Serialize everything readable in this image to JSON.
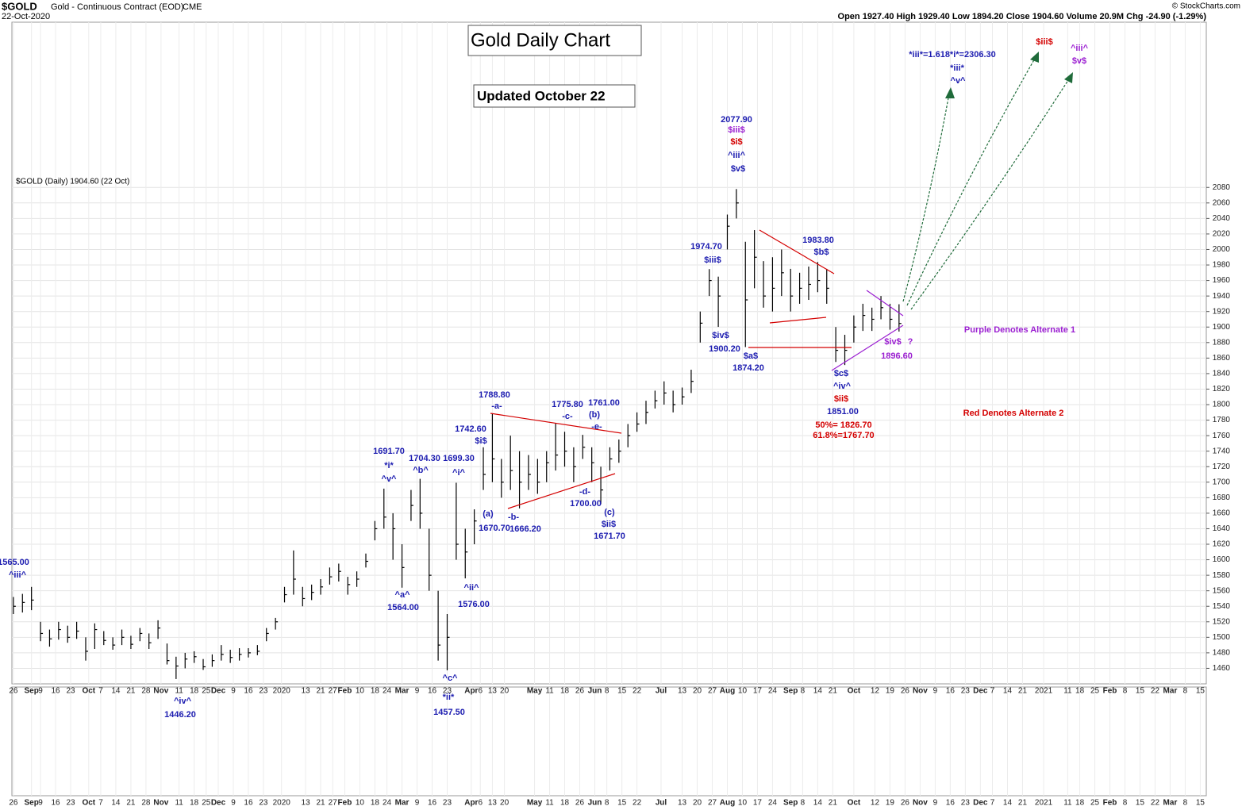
{
  "chart_data": {
    "type": "ohlc",
    "title": "Gold Daily Chart",
    "subtitle": "Updated October 22",
    "header": {
      "symbol": "$GOLD",
      "name": "Gold - Continuous Contract (EOD)",
      "exchange": "CME",
      "date": "22-Oct-2020",
      "quote": "Open 1927.40  High 1929.40  Low 1894.20  Close 1904.60  Volume 20.9M  Chg -24.90 (-1.29%)",
      "credit": "© StockCharts.com",
      "legend": "$GOLD (Daily) 1904.60 (22 Oct)"
    },
    "color": "#000000",
    "grid": true,
    "x": [
      0,
      3,
      6,
      9,
      12,
      15,
      18,
      21,
      24,
      27,
      30,
      33,
      36,
      39,
      42,
      45,
      48,
      51,
      54,
      57,
      60,
      63,
      66,
      69,
      72,
      75,
      78,
      81,
      84,
      87,
      90,
      93,
      96,
      99,
      102,
      105,
      108,
      111,
      114,
      117,
      120,
      123,
      126,
      129,
      132,
      135,
      138,
      141,
      144,
      147,
      150,
      153,
      156,
      159,
      162,
      165,
      168,
      171,
      174,
      177,
      180,
      183,
      186,
      189,
      192,
      195,
      198,
      201,
      204,
      207,
      210,
      213,
      216,
      219,
      222,
      225,
      228,
      231,
      234,
      237,
      240,
      243,
      246,
      249,
      252,
      255,
      258,
      261,
      264,
      267,
      270,
      273,
      276,
      279,
      282,
      285,
      288,
      291,
      294
    ],
    "high": [
      1552,
      1556,
      1565,
      1520,
      1510,
      1520,
      1515,
      1520,
      1500,
      1518,
      1508,
      1500,
      1510,
      1502,
      1512,
      1505,
      1522,
      1492,
      1475,
      1480,
      1482,
      1472,
      1478,
      1490,
      1484,
      1486,
      1486,
      1490,
      1512,
      1525,
      1565,
      1612,
      1565,
      1568,
      1575,
      1590,
      1595,
      1578,
      1585,
      1608,
      1650,
      1691.7,
      1660,
      1620,
      1690,
      1704.3,
      1640,
      1560,
      1530,
      1699.3,
      1640,
      1665,
      1745,
      1788.8,
      1730,
      1760,
      1740,
      1735,
      1730,
      1740,
      1775.8,
      1765,
      1745,
      1761,
      1745,
      1720,
      1745,
      1755,
      1775,
      1790,
      1805,
      1818,
      1830,
      1818,
      1822,
      1845,
      1920,
      1974.7,
      1965,
      2045,
      2077.9,
      2010,
      2025,
      1985,
      1990,
      2000,
      1975,
      1970,
      1978,
      1983.8,
      1975,
      1900,
      1890,
      1915,
      1930,
      1925,
      1940,
      1930,
      1929.4
    ],
    "low": [
      1530,
      1532,
      1535,
      1495,
      1488,
      1497,
      1493,
      1498,
      1470,
      1485,
      1490,
      1484,
      1490,
      1485,
      1495,
      1485,
      1498,
      1465,
      1446.2,
      1460,
      1467,
      1458,
      1462,
      1470,
      1467,
      1470,
      1474,
      1477,
      1495,
      1510,
      1545,
      1555,
      1540,
      1548,
      1555,
      1568,
      1572,
      1555,
      1565,
      1590,
      1625,
      1640,
      1600,
      1564,
      1650,
      1640,
      1560,
      1470,
      1457.5,
      1600,
      1576,
      1620,
      1690,
      1700,
      1680,
      1690,
      1666.2,
      1690,
      1685,
      1700,
      1715,
      1720,
      1700,
      1730,
      1700,
      1671.7,
      1715,
      1725,
      1745,
      1765,
      1775,
      1795,
      1800,
      1790,
      1800,
      1815,
      1880,
      1940,
      1900.2,
      2000,
      2040,
      1874.2,
      1950,
      1925,
      1920,
      1940,
      1920,
      1930,
      1935,
      1945,
      1930,
      1855,
      1851,
      1880,
      1895,
      1895,
      1910,
      1896.6,
      1894.2
    ],
    "close": [
      1540,
      1545,
      1548,
      1505,
      1498,
      1510,
      1500,
      1508,
      1482,
      1510,
      1496,
      1490,
      1500,
      1491,
      1505,
      1493,
      1512,
      1470,
      1463,
      1472,
      1475,
      1462,
      1470,
      1478,
      1474,
      1478,
      1480,
      1482,
      1505,
      1520,
      1555,
      1575,
      1550,
      1558,
      1565,
      1578,
      1585,
      1568,
      1575,
      1598,
      1640,
      1655,
      1640,
      1590,
      1670,
      1660,
      1580,
      1490,
      1500,
      1620,
      1610,
      1650,
      1710,
      1730,
      1700,
      1715,
      1700,
      1710,
      1700,
      1725,
      1735,
      1740,
      1720,
      1745,
      1725,
      1690,
      1730,
      1740,
      1760,
      1775,
      1790,
      1805,
      1815,
      1800,
      1810,
      1830,
      1905,
      1960,
      1940,
      2030,
      2060,
      1935,
      1990,
      1940,
      1950,
      1970,
      1940,
      1950,
      1955,
      1960,
      1950,
      1870,
      1870,
      1900,
      1915,
      1910,
      1925,
      1910,
      1904.6
    ],
    "xlim": [
      -0.5,
      396
    ],
    "ylim": [
      1440,
      2293
    ],
    "yticks": [
      1460,
      1480,
      1500,
      1520,
      1540,
      1560,
      1580,
      1600,
      1620,
      1640,
      1660,
      1680,
      1700,
      1720,
      1740,
      1760,
      1780,
      1800,
      1820,
      1840,
      1860,
      1880,
      1900,
      1920,
      1940,
      1960,
      1980,
      2000,
      2020,
      2040,
      2060,
      2080
    ],
    "xticks": [
      {
        "value": 0,
        "label": "26"
      },
      {
        "value": 6,
        "label": "Sep"
      },
      {
        "value": 9,
        "label": "9"
      },
      {
        "value": 14,
        "label": "16"
      },
      {
        "value": 19,
        "label": "23"
      },
      {
        "value": 25,
        "label": "Oct"
      },
      {
        "value": 29,
        "label": "7"
      },
      {
        "value": 34,
        "label": "14"
      },
      {
        "value": 39,
        "label": "21"
      },
      {
        "value": 44,
        "label": "28"
      },
      {
        "value": 49,
        "label": "Nov"
      },
      {
        "value": 55,
        "label": "11"
      },
      {
        "value": 60,
        "label": "18"
      },
      {
        "value": 64,
        "label": "25"
      },
      {
        "value": 68,
        "label": "Dec"
      },
      {
        "value": 73,
        "label": "9"
      },
      {
        "value": 78,
        "label": "16"
      },
      {
        "value": 83,
        "label": "23"
      },
      {
        "value": 89,
        "label": "2020"
      },
      {
        "value": 97,
        "label": "13"
      },
      {
        "value": 102,
        "label": "21"
      },
      {
        "value": 106,
        "label": "27"
      },
      {
        "value": 110,
        "label": "Feb"
      },
      {
        "value": 115,
        "label": "10"
      },
      {
        "value": 120,
        "label": "18"
      },
      {
        "value": 124,
        "label": "24"
      },
      {
        "value": 129,
        "label": "Mar"
      },
      {
        "value": 134,
        "label": "9"
      },
      {
        "value": 139,
        "label": "16"
      },
      {
        "value": 144,
        "label": "23"
      },
      {
        "value": 152,
        "label": "Apr"
      },
      {
        "value": 155,
        "label": "6"
      },
      {
        "value": 159,
        "label": "13"
      },
      {
        "value": 163,
        "label": "20"
      },
      {
        "value": 173,
        "label": "May"
      },
      {
        "value": 178,
        "label": "11"
      },
      {
        "value": 183,
        "label": "18"
      },
      {
        "value": 188,
        "label": "26"
      },
      {
        "value": 193,
        "label": "Jun"
      },
      {
        "value": 197,
        "label": "8"
      },
      {
        "value": 202,
        "label": "15"
      },
      {
        "value": 207,
        "label": "22"
      },
      {
        "value": 215,
        "label": "Jul"
      },
      {
        "value": 222,
        "label": "13"
      },
      {
        "value": 227,
        "label": "20"
      },
      {
        "value": 232,
        "label": "27"
      },
      {
        "value": 237,
        "label": "Aug"
      },
      {
        "value": 242,
        "label": "10"
      },
      {
        "value": 247,
        "label": "17"
      },
      {
        "value": 252,
        "label": "24"
      },
      {
        "value": 258,
        "label": "Sep"
      },
      {
        "value": 262,
        "label": "8"
      },
      {
        "value": 267,
        "label": "14"
      },
      {
        "value": 272,
        "label": "21"
      },
      {
        "value": 279,
        "label": "Oct"
      },
      {
        "value": 286,
        "label": "12"
      },
      {
        "value": 291,
        "label": "19"
      },
      {
        "value": 296,
        "label": "26"
      },
      {
        "value": 301,
        "label": "Nov"
      },
      {
        "value": 306,
        "label": "9"
      },
      {
        "value": 311,
        "label": "16"
      },
      {
        "value": 316,
        "label": "23"
      },
      {
        "value": 321,
        "label": "Dec"
      },
      {
        "value": 325,
        "label": "7"
      },
      {
        "value": 330,
        "label": "14"
      },
      {
        "value": 335,
        "label": "21"
      },
      {
        "value": 342,
        "label": "2021"
      },
      {
        "value": 350,
        "label": "11"
      },
      {
        "value": 354,
        "label": "18"
      },
      {
        "value": 359,
        "label": "25"
      },
      {
        "value": 364,
        "label": "Feb"
      },
      {
        "value": 369,
        "label": "8"
      },
      {
        "value": 374,
        "label": "15"
      },
      {
        "value": 379,
        "label": "22"
      },
      {
        "value": 384,
        "label": "Mar"
      },
      {
        "value": 389,
        "label": "8"
      },
      {
        "value": 394,
        "label": "15"
      }
    ],
    "annotations": [
      {
        "text": "1565.00",
        "color": "#1c1cb0"
      },
      {
        "text": "^iii^",
        "color": "#1c1cb0"
      },
      {
        "text": "1691.70",
        "color": "#1c1cb0"
      },
      {
        "text": "*i*",
        "color": "#1c1cb0"
      },
      {
        "text": "^v^",
        "color": "#1c1cb0"
      },
      {
        "text": "1704.30",
        "color": "#1c1cb0"
      },
      {
        "text": "^b^",
        "color": "#1c1cb0"
      },
      {
        "text": "1699.30",
        "color": "#1c1cb0"
      },
      {
        "text": "^i^",
        "color": "#1c1cb0"
      },
      {
        "text": "^a^",
        "color": "#1c1cb0"
      },
      {
        "text": "1564.00",
        "color": "#1c1cb0"
      },
      {
        "text": "^ii^",
        "color": "#1c1cb0"
      },
      {
        "text": "1576.00",
        "color": "#1c1cb0"
      },
      {
        "text": "^c^",
        "color": "#1c1cb0"
      },
      {
        "text": "*ii*",
        "color": "#1c1cb0"
      },
      {
        "text": "1457.50",
        "color": "#1c1cb0"
      },
      {
        "text": "^iv^",
        "color": "#1c1cb0"
      },
      {
        "text": "1446.20",
        "color": "#1c1cb0"
      },
      {
        "text": "1742.60",
        "color": "#1c1cb0"
      },
      {
        "text": "$i$",
        "color": "#1c1cb0"
      },
      {
        "text": "1788.80",
        "color": "#1c1cb0"
      },
      {
        "text": "-a-",
        "color": "#1c1cb0"
      },
      {
        "text": "(a)",
        "color": "#1c1cb0"
      },
      {
        "text": "1670.70",
        "color": "#1c1cb0"
      },
      {
        "text": "-b-",
        "color": "#1c1cb0"
      },
      {
        "text": "1666.20",
        "color": "#1c1cb0"
      },
      {
        "text": "1775.80",
        "color": "#1c1cb0"
      },
      {
        "text": "-c-",
        "color": "#1c1cb0"
      },
      {
        "text": "1761.00",
        "color": "#1c1cb0"
      },
      {
        "text": "(b)",
        "color": "#1c1cb0"
      },
      {
        "text": "-e-",
        "color": "#1c1cb0"
      },
      {
        "text": "-d-",
        "color": "#1c1cb0"
      },
      {
        "text": "1700.00",
        "color": "#1c1cb0"
      },
      {
        "text": "(c)",
        "color": "#1c1cb0"
      },
      {
        "text": "$ii$",
        "color": "#1c1cb0"
      },
      {
        "text": "1671.70",
        "color": "#1c1cb0"
      },
      {
        "text": "2077.90",
        "color": "#1c1cb0"
      },
      {
        "text": "$iii$",
        "color": "#9b1fd1"
      },
      {
        "text": "$i$",
        "color": "#d40000"
      },
      {
        "text": "^iii^",
        "color": "#1c1cb0"
      },
      {
        "text": "$v$",
        "color": "#1c1cb0"
      },
      {
        "text": "1974.70",
        "color": "#1c1cb0"
      },
      {
        "text": "$iii$",
        "color": "#1c1cb0"
      },
      {
        "text": "$iv$",
        "color": "#1c1cb0"
      },
      {
        "text": "1900.20",
        "color": "#1c1cb0"
      },
      {
        "text": "$a$",
        "color": "#1c1cb0"
      },
      {
        "text": "1874.20",
        "color": "#1c1cb0"
      },
      {
        "text": "1983.80",
        "color": "#1c1cb0"
      },
      {
        "text": "$b$",
        "color": "#1c1cb0"
      },
      {
        "text": "$c$",
        "color": "#1c1cb0"
      },
      {
        "text": "^iv^",
        "color": "#1c1cb0"
      },
      {
        "text": "$ii$",
        "color": "#d40000"
      },
      {
        "text": "1851.00",
        "color": "#1c1cb0"
      },
      {
        "text": "50%= 1826.70",
        "color": "#d40000"
      },
      {
        "text": "61.8%=1767.70",
        "color": "#d40000"
      },
      {
        "text": "$iv$",
        "color": "#9b1fd1"
      },
      {
        "text": "?",
        "color": "#9b1fd1"
      },
      {
        "text": "1896.60",
        "color": "#9b1fd1"
      },
      {
        "text": "*iii*=1.618*i*=2306.30",
        "color": "#1c1cb0"
      },
      {
        "text": "*iii*",
        "color": "#1c1cb0"
      },
      {
        "text": "^v^",
        "color": "#1c1cb0"
      },
      {
        "text": "$iii$",
        "color": "#d40000"
      },
      {
        "text": "^iii^",
        "color": "#9b1fd1"
      },
      {
        "text": "$v$",
        "color": "#9b1fd1"
      },
      {
        "text": "Purple Denotes Alternate 1",
        "color": "#9b1fd1"
      },
      {
        "text": "Red Denotes Alternate 2",
        "color": "#d40000"
      }
    ]
  }
}
